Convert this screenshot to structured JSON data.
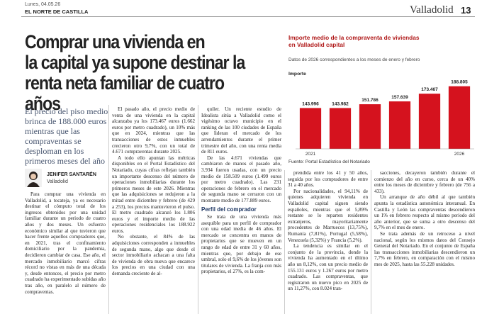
{
  "header": {
    "date": "Lunes, 04.05.26",
    "newspaper": "EL NORTE DE CASTILLA",
    "section": "Valladolid",
    "page": "13"
  },
  "headline": [
    "Comprar una vivienda en",
    "la capital ya supone destinar la",
    "renta neta familiar de cuatro años"
  ],
  "lead": "El precio del piso medio brinca de 188.000 euros mientras que las compraventas se desploman en los primeros meses del año",
  "author": {
    "name": "JENIFER SANTARÉN",
    "location": "Valladolid"
  },
  "columns": [
    {
      "paragraphs": [
        "Para comprar una vivienda en Valladolid, a tocateja, ya es necesario destinar el cómputo total de los ingresos obtenidos por una unidad familiar durante un periodo de cuatro años y dos meses. Un esfuerzo económico similar al que tuvieron que hacer frente aquellos compradores que, en 2021, tras el confinamiento domiciliario por la pandemia, decidieron cambiar de casa. Ese año, el mercado inmobiliario marcó cifras récord no vistas en más de una década y, desde entonces, el precio por metro cuadrado ha experimentado subidas año tras año, en paralelo al número de compraventas."
      ]
    },
    {
      "paragraphs": [
        "El pasado año, el precio medio de venta de una vivienda en la capital alcanzaba ya los 173.467 euros (1.662 euros por metro cuadrado), un 10% más que en 2024, mientras que las transacciones de estos inmuebles crecieron otro 9,7%, con un total de 4.671 compraventas durante 2025.",
        "A todo ello apuntan las métricas disponibles en el Portal Estadístico del Notariado, cuyas cifras reflejan también un importante descenso del número de operaciones inmobiliarias durante los primeros meses de este 2026. Mientras que las adquisiciones se redujeron a la mitad entre diciembre y febrero (de 429 a 253), los precios mantuvieron el pulso. El metro cuadrado alcanzó los 1.806 euros y el importe medio de las operaciones residenciales los 188.922 euros.",
        "No obstante, el 84% de las adquisiciones corresponden a inmuebles de segunda mano, algo que desde el sector inmobiliario achacan a una falta de vivienda de obra nueva que encarece los precios en una ciudad con una demanda creciente de al-"
      ]
    },
    {
      "paragraphs": [
        "quiler. Un reciente estudio de Idealista sitúa a Valladolid como el vigésimo octavo municipio en el ranking de las 100 ciudades de España que lideran el mercado de los arrendamientos durante el primer trimestre del año, con una renta media de 811 euros.",
        "De las 4.671 viviendas que cambiaron de manos el pasado año, 3.934 fueron usadas, con un precio medio de 158.509 euros (1.499 euros por metro cuadrado). Las 231 operaciones de febrero en el mercado de segunda mano se cerraron con un montante medio de 177.889 euros."
      ],
      "subheading": "Perfil del comprador",
      "paragraphs_after": [
        "Se trata de una vivienda más asequible para un perfil de comprador con una edad media de 46 años. El mercado se concentra en manos de propietarios que se mueven en un rango de edad de entre 31 y 60 años, mientras que, por debajo de ese umbral, solo el 9,6% de los jóvenes son titulares de vivienda. La franja con más propietarios, el 27%, es la com-"
      ]
    },
    {
      "paragraphs": [
        "prendida entre los 41 y 50 años, seguida por los compradores de entre 31 a 40 años.",
        "Por nacionalidades, el 94,11% de quienes adquieren vivienda en Valladolid capital siguen siendo españoles, mientras que el 5,89% restante se lo reparten residentes extranjeros, mayoritariamente procedentes de Marruecos (13,75%), Rumanía (7,81%), Portugal (5,58%), Venezuela (5,32%) y Francia (5,2%).",
        "La tendencia es similar en el conjunto de la provincia, donde la vivienda ha aumentado en el último año un 8,12%, con un precio medio de 155.131 euros y 1.267 euros por metro cuadrado. Las compraventas, que registraron un nuevo pico en 2025 de un 11,27%, con 8.024 tran-"
      ]
    },
    {
      "paragraphs": [
        "sacciones, decayeron también durante el comienzo del año en curso, cerca de un 40% entre los meses de diciembre y febrero (de 756 a 433).",
        "Un arranque de año débil al que también apunta la estadística autonómica interanual. En Castilla y León las compraventas descendieron un 1% en febrero respecto al mismo periodo del año anterior, que se suma a otro descenso del 9,7% en el mes de enero.",
        "Se trata además de un retroceso a nivel nacional, según los mismos datos del Consejo General del Notariado. En el conjunto de España las transacciones inmobiliarias descendieron un 7,7% en febrero, en comparación con el mismo mes de 2025, hasta las 55.228 unidades."
      ]
    }
  ],
  "chart_data": {
    "type": "bar",
    "title": "Importe medio de la compraventa de viviendas en Valladolid capital",
    "subtitle": "Datos de 2026 correspondientes a los meses de enero y febrero",
    "ylabel": "Importe",
    "source": "Fuente: Portal Estadístico del Notariado",
    "categories": [
      "2021",
      null,
      null,
      null,
      null,
      "2026"
    ],
    "values": [
      143996,
      143982,
      151786,
      157639,
      173467,
      188805
    ],
    "value_labels": [
      "143.996",
      "143.982",
      "151.786",
      "157.639",
      "173.467",
      "188.805"
    ],
    "color": "#d5121e",
    "ylim": [
      60000,
      200000
    ]
  }
}
